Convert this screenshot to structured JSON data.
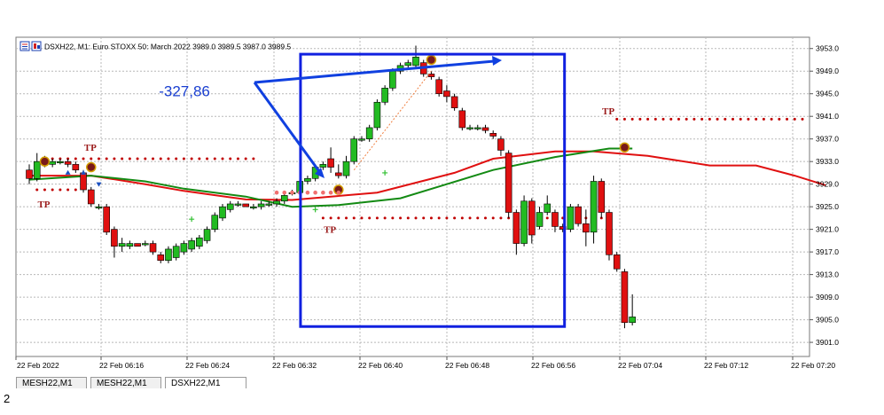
{
  "header": {
    "symbol_text": "DSXH22, M1:  Euro STOXX 50: March 2022  3989.0 3989.5 3987.0 3989.5"
  },
  "tabs": [
    "MESH22,M1",
    "MESH22,M1",
    "DSXH22,M1"
  ],
  "footnote": "2",
  "annotation_value": "-327,86",
  "tp_label": "TP",
  "colors": {
    "bull": "#22bb22",
    "bear": "#e01010",
    "ma_red": "#e01010",
    "ma_green": "#138a13",
    "tp_dots": "#c00000",
    "box": "#1020e0",
    "arrow": "#1040e0",
    "grid": "#b8b8b8",
    "axis_text": "#000000"
  },
  "chart_data": {
    "type": "candlestick",
    "title": "DSXH22, M1:  Euro STOXX 50: March 2022  3989.0 3989.5 3987.0 3989.5",
    "ylim": [
      3898.5,
      3955
    ],
    "y_ticks": [
      "3953.0",
      "3949.0",
      "3945.0",
      "3941.0",
      "3937.0",
      "3933.0",
      "3929.0",
      "3925.0",
      "3921.0",
      "3917.0",
      "3913.0",
      "3909.0",
      "3905.0",
      "3901.0"
    ],
    "x_ticks": [
      "22 Feb 2022",
      "22 Feb 06:16",
      "22 Feb 06:24",
      "22 Feb 06:32",
      "22 Feb 06:40",
      "22 Feb 06:48",
      "22 Feb 06:56",
      "22 Feb 07:04",
      "22 Feb 07:12",
      "22 Feb 07:20"
    ],
    "grid": true,
    "candles": [
      [
        3931.5,
        3932.5,
        3929.0,
        3930.0
      ],
      [
        3930.0,
        3934.5,
        3929.5,
        3933.0
      ],
      [
        3933.0,
        3934.0,
        3932.0,
        3932.5
      ],
      [
        3932.5,
        3933.5,
        3932.0,
        3933.0
      ],
      [
        3933.0,
        3933.5,
        3932.5,
        3933.0
      ],
      [
        3933.0,
        3933.5,
        3932.0,
        3932.5
      ],
      [
        3932.5,
        3933.0,
        3931.0,
        3931.5
      ],
      [
        3931.0,
        3931.5,
        3927.5,
        3928.0
      ],
      [
        3928.0,
        3928.5,
        3925.0,
        3925.5
      ],
      [
        3925.0,
        3925.5,
        3924.5,
        3925.0
      ],
      [
        3925.0,
        3925.5,
        3920.0,
        3920.5
      ],
      [
        3921.0,
        3921.5,
        3916.0,
        3918.0
      ],
      [
        3918.0,
        3919.5,
        3917.0,
        3918.5
      ],
      [
        3918.0,
        3919.0,
        3917.5,
        3918.5
      ],
      [
        3918.5,
        3918.5,
        3918.0,
        3918.0
      ],
      [
        3918.5,
        3919.0,
        3918.0,
        3918.5
      ],
      [
        3918.5,
        3919.0,
        3916.5,
        3917.0
      ],
      [
        3916.5,
        3917.0,
        3915.0,
        3915.5
      ],
      [
        3915.5,
        3918.0,
        3915.0,
        3917.5
      ],
      [
        3916.0,
        3918.5,
        3915.5,
        3918.0
      ],
      [
        3917.0,
        3919.0,
        3916.5,
        3918.5
      ],
      [
        3917.5,
        3919.5,
        3917.0,
        3919.0
      ],
      [
        3918.0,
        3920.0,
        3917.5,
        3919.5
      ],
      [
        3919.0,
        3921.5,
        3918.5,
        3921.0
      ],
      [
        3921.0,
        3924.0,
        3920.5,
        3923.5
      ],
      [
        3923.0,
        3925.5,
        3922.5,
        3925.0
      ],
      [
        3924.5,
        3926.0,
        3924.0,
        3925.5
      ],
      [
        3925.5,
        3926.0,
        3925.0,
        3925.5
      ],
      [
        3925.5,
        3925.5,
        3925.0,
        3925.0
      ],
      [
        3925.0,
        3925.5,
        3924.5,
        3925.0
      ],
      [
        3925.0,
        3926.0,
        3924.5,
        3925.5
      ],
      [
        3925.5,
        3926.0,
        3925.0,
        3925.5
      ],
      [
        3925.5,
        3926.5,
        3925.0,
        3926.0
      ],
      [
        3926.0,
        3927.5,
        3925.5,
        3927.0
      ],
      [
        3927.5,
        3928.0,
        3927.0,
        3927.5
      ],
      [
        3927.5,
        3930.0,
        3927.0,
        3929.5
      ],
      [
        3929.5,
        3930.5,
        3929.0,
        3930.0
      ],
      [
        3930.0,
        3932.5,
        3929.5,
        3932.0
      ],
      [
        3932.0,
        3933.0,
        3931.5,
        3932.5
      ],
      [
        3933.5,
        3935.5,
        3931.0,
        3932.0
      ],
      [
        3931.0,
        3932.5,
        3930.0,
        3930.5
      ],
      [
        3930.5,
        3934.0,
        3930.0,
        3933.0
      ],
      [
        3933.0,
        3937.5,
        3932.5,
        3937.0
      ],
      [
        3937.0,
        3937.5,
        3936.5,
        3937.0
      ],
      [
        3937.0,
        3939.5,
        3936.5,
        3939.0
      ],
      [
        3939.0,
        3944.0,
        3938.5,
        3943.5
      ],
      [
        3943.5,
        3946.5,
        3943.0,
        3946.0
      ],
      [
        3946.0,
        3949.5,
        3945.5,
        3949.0
      ],
      [
        3949.0,
        3950.5,
        3948.5,
        3950.0
      ],
      [
        3950.0,
        3951.0,
        3949.5,
        3950.5
      ],
      [
        3950.0,
        3953.5,
        3949.5,
        3951.5
      ],
      [
        3950.5,
        3951.0,
        3948.0,
        3948.5
      ],
      [
        3948.5,
        3949.0,
        3947.5,
        3948.0
      ],
      [
        3947.5,
        3948.0,
        3944.5,
        3945.0
      ],
      [
        3945.5,
        3946.5,
        3943.5,
        3944.5
      ],
      [
        3944.5,
        3945.0,
        3942.0,
        3942.5
      ],
      [
        3942.0,
        3942.5,
        3938.5,
        3939.0
      ],
      [
        3939.0,
        3939.5,
        3938.5,
        3939.0
      ],
      [
        3939.0,
        3939.5,
        3938.5,
        3939.0
      ],
      [
        3939.0,
        3939.5,
        3938.0,
        3938.5
      ],
      [
        3938.0,
        3938.5,
        3937.0,
        3937.5
      ],
      [
        3937.0,
        3937.5,
        3934.0,
        3935.0
      ],
      [
        3934.5,
        3935.0,
        3923.0,
        3924.0
      ],
      [
        3924.0,
        3924.5,
        3916.5,
        3918.5
      ],
      [
        3918.5,
        3927.0,
        3918.0,
        3926.0
      ],
      [
        3926.0,
        3926.5,
        3918.5,
        3920.0
      ],
      [
        3921.5,
        3925.0,
        3921.0,
        3924.0
      ],
      [
        3924.0,
        3927.0,
        3923.5,
        3925.5
      ],
      [
        3924.0,
        3924.5,
        3920.5,
        3921.5
      ],
      [
        3921.5,
        3922.0,
        3920.5,
        3921.0
      ],
      [
        3921.0,
        3925.5,
        3920.5,
        3925.0
      ],
      [
        3925.0,
        3925.5,
        3921.5,
        3922.0
      ],
      [
        3922.0,
        3924.5,
        3918.0,
        3920.5
      ],
      [
        3920.5,
        3930.5,
        3918.5,
        3929.5
      ],
      [
        3929.5,
        3930.0,
        3923.0,
        3924.0
      ],
      [
        3924.0,
        3924.5,
        3915.5,
        3916.5
      ],
      [
        3916.5,
        3917.0,
        3913.5,
        3914.0
      ],
      [
        3913.5,
        3914.0,
        3903.5,
        3904.5
      ],
      [
        3904.5,
        3909.5,
        3904.0,
        3905.5
      ]
    ],
    "ma_red": [
      [
        0,
        3930.5
      ],
      [
        8,
        3930.5
      ],
      [
        15,
        3929.0
      ],
      [
        20,
        3927.8
      ],
      [
        28,
        3926.3
      ],
      [
        34,
        3926.2
      ],
      [
        45,
        3927.5
      ],
      [
        55,
        3931.0
      ],
      [
        60,
        3933.5
      ],
      [
        68,
        3934.8
      ],
      [
        73,
        3934.8
      ],
      [
        80,
        3934.0
      ],
      [
        88,
        3932.3
      ],
      [
        94,
        3932.3
      ],
      [
        99,
        3930.5
      ],
      [
        103,
        3928.8
      ]
    ],
    "ma_green": [
      [
        0,
        3929.8
      ],
      [
        8,
        3930.5
      ],
      [
        15,
        3929.5
      ],
      [
        20,
        3928.2
      ],
      [
        28,
        3926.8
      ],
      [
        34,
        3925.0
      ],
      [
        40,
        3925.3
      ],
      [
        48,
        3926.5
      ],
      [
        54,
        3929.0
      ],
      [
        60,
        3931.5
      ],
      [
        68,
        3933.8
      ],
      [
        75,
        3935.3
      ],
      [
        78,
        3935.3
      ]
    ],
    "tp_lines": [
      {
        "from": 2,
        "to": 29,
        "price": 3933.5
      },
      {
        "from": 1,
        "to": 6,
        "price": 3928.0
      },
      {
        "from": 38,
        "to": 74,
        "price": 3923.0
      },
      {
        "from": 76,
        "to": 100,
        "price": 3940.5
      }
    ],
    "tp_labels": [
      {
        "i": 8,
        "price": 3935.5
      },
      {
        "i": 2,
        "price": 3925.5
      },
      {
        "i": 39,
        "price": 3921.0
      },
      {
        "i": 75,
        "price": 3942.0
      }
    ],
    "rect": {
      "i0": 36,
      "i1": 69,
      "price_top": 3952.0,
      "price_bottom": 3903.8
    },
    "annotation": {
      "i": 17,
      "price": 3945.5,
      "text": "-327,86"
    }
  }
}
